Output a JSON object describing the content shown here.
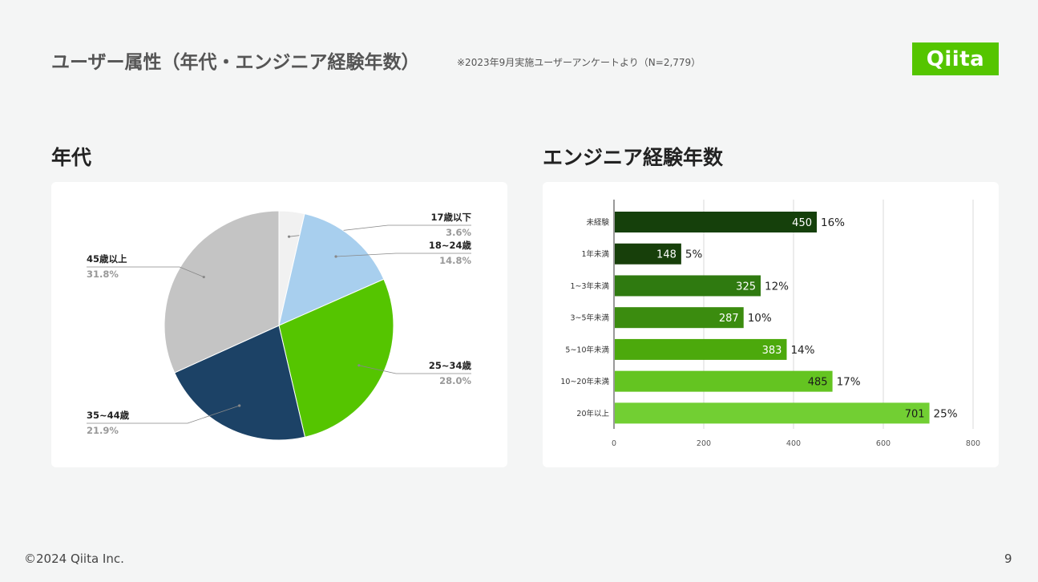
{
  "header": {
    "title": "ユーザー属性（年代・エンジニア経験年数）",
    "note": "※2023年9月実施ユーザーアンケートより（N=2,779）",
    "logo_text": "Qiita"
  },
  "colors": {
    "brand": "#55c500",
    "background": "#f4f5f5"
  },
  "sections": {
    "age_title": "年代",
    "experience_title": "エンジニア経験年数"
  },
  "chart_data": [
    {
      "type": "pie",
      "title": "年代",
      "categories": [
        "17歳以下",
        "18~24歳",
        "25~34歳",
        "35~44歳",
        "45歳以上"
      ],
      "values": [
        3.6,
        14.8,
        28.0,
        21.9,
        31.8
      ],
      "labels": [
        "3.6%",
        "14.8%",
        "28.0%",
        "21.9%",
        "31.8%"
      ],
      "colors": [
        "#f1f1f1",
        "#a8cfee",
        "#55c500",
        "#1c4266",
        "#c4c4c4"
      ],
      "legend": "callout labels"
    },
    {
      "type": "bar",
      "orientation": "horizontal",
      "title": "エンジニア経験年数",
      "categories": [
        "未経験",
        "1年未満",
        "1~3年未満",
        "3~5年未満",
        "5~10年未満",
        "10~20年未満",
        "20年以上"
      ],
      "values": [
        450,
        148,
        325,
        287,
        383,
        485,
        701
      ],
      "percent_labels": [
        "16%",
        "5%",
        "12%",
        "10%",
        "14%",
        "17%",
        "25%"
      ],
      "colors": [
        "#15400b",
        "#173f0a",
        "#2f7a10",
        "#3b8c0f",
        "#4ca90c",
        "#64c421",
        "#72cf33"
      ],
      "xlim": [
        0,
        800
      ],
      "xticks": [
        "0",
        "200",
        "400",
        "600",
        "800"
      ],
      "grid": true
    }
  ],
  "footer": {
    "copyright": "©2024 Qiita Inc.",
    "page": "9"
  }
}
